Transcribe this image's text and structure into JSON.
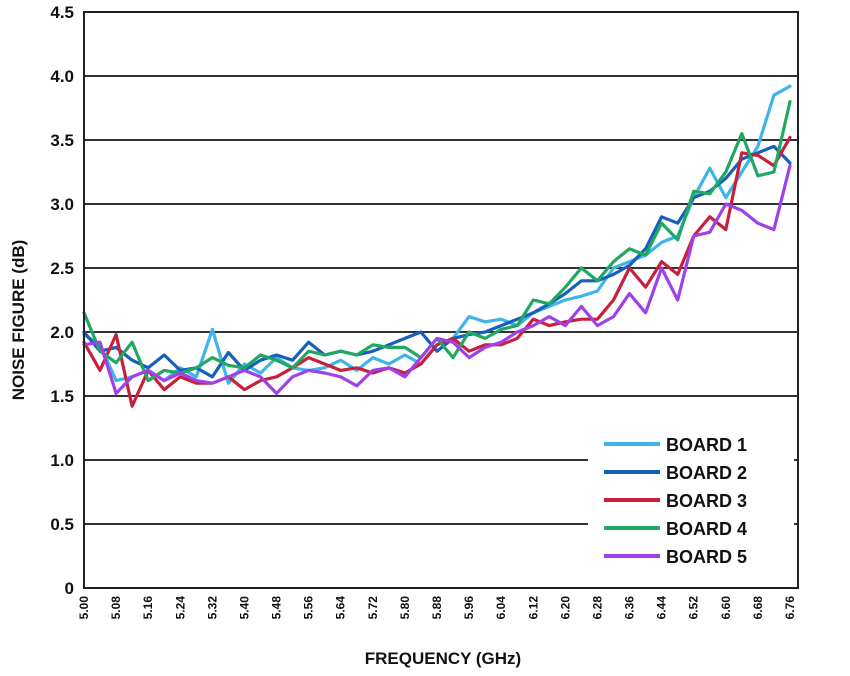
{
  "chart_data": {
    "type": "line",
    "xlabel": "FREQUENCY (GHz)",
    "ylabel": "NOISE FIGURE (dB)",
    "xlim": [
      5.0,
      6.78
    ],
    "ylim": [
      0,
      4.5
    ],
    "grid": true,
    "legend_position": "bottom-right",
    "x_ticks": [
      "5.00",
      "5.08",
      "5.16",
      "5.24",
      "5.32",
      "5.40",
      "5.48",
      "5.56",
      "5.64",
      "5.72",
      "5.80",
      "5.88",
      "5.96",
      "6.04",
      "6.12",
      "6.20",
      "6.28",
      "6.36",
      "6.44",
      "6.52",
      "6.60",
      "6.68",
      "6.76"
    ],
    "y_ticks": [
      "0",
      "0.5",
      "1.0",
      "1.5",
      "2.0",
      "2.5",
      "3.0",
      "3.5",
      "4.0",
      "4.5"
    ],
    "x": [
      5.0,
      5.04,
      5.08,
      5.12,
      5.16,
      5.2,
      5.24,
      5.28,
      5.32,
      5.36,
      5.4,
      5.44,
      5.48,
      5.52,
      5.56,
      5.6,
      5.64,
      5.68,
      5.72,
      5.76,
      5.8,
      5.84,
      5.88,
      5.92,
      5.96,
      6.0,
      6.04,
      6.08,
      6.12,
      6.16,
      6.2,
      6.24,
      6.28,
      6.32,
      6.36,
      6.4,
      6.44,
      6.48,
      6.52,
      6.56,
      6.6,
      6.64,
      6.68,
      6.72,
      6.76
    ],
    "series": [
      {
        "name": "BOARD 1",
        "color": "#3fb4ea",
        "values": [
          1.98,
          1.9,
          1.62,
          1.65,
          1.7,
          1.62,
          1.72,
          1.65,
          2.02,
          1.6,
          1.75,
          1.68,
          1.8,
          1.72,
          1.7,
          1.72,
          1.78,
          1.7,
          1.8,
          1.75,
          1.82,
          1.75,
          1.9,
          1.95,
          2.12,
          2.08,
          2.1,
          2.05,
          2.15,
          2.2,
          2.25,
          2.28,
          2.32,
          2.5,
          2.55,
          2.6,
          2.7,
          2.75,
          3.05,
          3.28,
          3.05,
          3.25,
          3.45,
          3.85,
          3.92
        ]
      },
      {
        "name": "BOARD 2",
        "color": "#1560bd",
        "values": [
          2.0,
          1.85,
          1.88,
          1.78,
          1.72,
          1.82,
          1.7,
          1.72,
          1.65,
          1.84,
          1.7,
          1.78,
          1.82,
          1.78,
          1.92,
          1.82,
          1.85,
          1.82,
          1.85,
          1.9,
          1.95,
          2.0,
          1.85,
          1.95,
          1.98,
          2.0,
          2.05,
          2.1,
          2.15,
          2.22,
          2.3,
          2.4,
          2.4,
          2.45,
          2.52,
          2.65,
          2.9,
          2.85,
          3.05,
          3.1,
          3.2,
          3.35,
          3.4,
          3.45,
          3.32
        ]
      },
      {
        "name": "BOARD 3",
        "color": "#c8203a",
        "values": [
          1.92,
          1.7,
          1.98,
          1.42,
          1.7,
          1.55,
          1.65,
          1.6,
          1.6,
          1.65,
          1.55,
          1.62,
          1.65,
          1.72,
          1.8,
          1.75,
          1.7,
          1.72,
          1.68,
          1.72,
          1.68,
          1.75,
          1.9,
          1.95,
          1.85,
          1.9,
          1.9,
          1.95,
          2.1,
          2.05,
          2.08,
          2.1,
          2.1,
          2.25,
          2.5,
          2.35,
          2.55,
          2.45,
          2.75,
          2.9,
          2.8,
          3.4,
          3.38,
          3.3,
          3.52
        ]
      },
      {
        "name": "BOARD 4",
        "color": "#20a860",
        "values": [
          2.15,
          1.85,
          1.76,
          1.92,
          1.62,
          1.7,
          1.68,
          1.72,
          1.8,
          1.74,
          1.72,
          1.82,
          1.78,
          1.72,
          1.85,
          1.82,
          1.85,
          1.82,
          1.9,
          1.88,
          1.88,
          1.8,
          1.95,
          1.8,
          2.0,
          1.95,
          2.02,
          2.05,
          2.25,
          2.22,
          2.35,
          2.5,
          2.4,
          2.55,
          2.65,
          2.6,
          2.85,
          2.72,
          3.1,
          3.08,
          3.25,
          3.55,
          3.22,
          3.25,
          3.8
        ]
      },
      {
        "name": "BOARD 5",
        "color": "#a040e8",
        "values": [
          1.9,
          1.92,
          1.52,
          1.65,
          1.7,
          1.62,
          1.68,
          1.62,
          1.6,
          1.65,
          1.7,
          1.65,
          1.52,
          1.65,
          1.7,
          1.68,
          1.65,
          1.58,
          1.7,
          1.72,
          1.65,
          1.8,
          1.95,
          1.92,
          1.8,
          1.88,
          1.92,
          2.0,
          2.05,
          2.12,
          2.05,
          2.2,
          2.05,
          2.12,
          2.3,
          2.15,
          2.5,
          2.25,
          2.75,
          2.78,
          3.0,
          2.95,
          2.85,
          2.8,
          3.3
        ]
      }
    ]
  }
}
